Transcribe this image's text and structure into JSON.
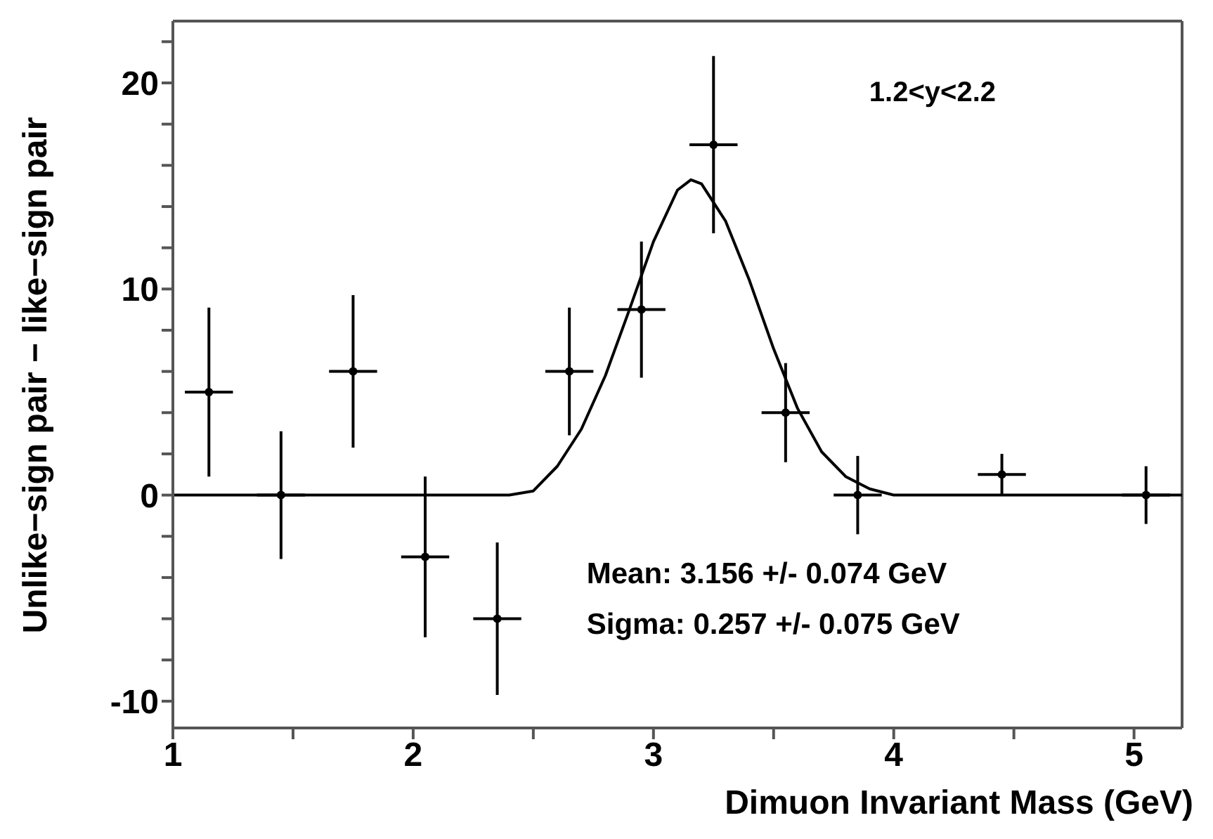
{
  "chart_data": {
    "type": "scatter",
    "xlabel": "Dimuon Invariant Mass (GeV)",
    "ylabel": "Unlike−sign pair − like−sign pair",
    "annotations": [
      "1.2<y<2.2",
      "Mean: 3.156 +/- 0.074 GeV",
      "Sigma: 0.257 +/- 0.075 GeV"
    ],
    "xlim": [
      1,
      5.2
    ],
    "xticks": [
      1,
      {
        "value": 1.5,
        "label": null
      },
      2,
      {
        "value": 2.5,
        "label": null
      },
      3,
      {
        "value": 3.5,
        "label": null
      },
      4,
      {
        "value": 4.5,
        "label": null
      },
      5
    ],
    "ylim": [
      -11.3,
      23
    ],
    "yticks": [
      -10,
      {
        "value": -8,
        "label": null
      },
      {
        "value": -6,
        "label": null
      },
      {
        "value": -4,
        "label": null
      },
      {
        "value": -2,
        "label": null
      },
      0,
      {
        "value": 2,
        "label": null
      },
      {
        "value": 4,
        "label": null
      },
      {
        "value": 6,
        "label": null
      },
      {
        "value": 8,
        "label": null
      },
      10,
      {
        "value": 12,
        "label": null
      },
      {
        "value": 14,
        "label": null
      },
      {
        "value": 16,
        "label": null
      },
      {
        "value": 18,
        "label": null
      },
      20,
      {
        "value": 22,
        "label": null
      }
    ],
    "grid": false,
    "series": [
      {
        "type": "line",
        "color": "#000000",
        "x": [
          1,
          2.4,
          2.5,
          2.6,
          2.7,
          2.8,
          2.9,
          3.0,
          3.1,
          3.156,
          3.2,
          3.3,
          3.4,
          3.5,
          3.6,
          3.7,
          3.8,
          3.9,
          4.0,
          5.2
        ],
        "values": [
          0,
          0,
          0.2,
          1.4,
          3.2,
          5.8,
          9,
          12.3,
          14.8,
          15.3,
          15.1,
          13.3,
          10.4,
          7.1,
          4.2,
          2.1,
          0.9,
          0.3,
          0,
          0
        ]
      },
      {
        "color": "#000000",
        "x": [
          1.15,
          1.45,
          1.75,
          2.05,
          2.35,
          2.65,
          2.95,
          3.25,
          3.55,
          3.85,
          4.45,
          5.05
        ],
        "values": [
          5,
          0,
          6,
          -3,
          -6,
          6,
          9,
          17,
          4,
          0,
          1,
          0
        ],
        "errors": [
          4.1,
          3.1,
          3.7,
          3.9,
          3.7,
          3.1,
          3.3,
          4.3,
          2.4,
          1.9,
          1,
          1.4
        ],
        "xerrors": [
          0.1,
          0.1,
          0.1,
          0.1,
          0.1,
          0.1,
          0.1,
          0.1,
          0.1,
          0.1,
          0.1,
          0.1
        ]
      }
    ]
  }
}
